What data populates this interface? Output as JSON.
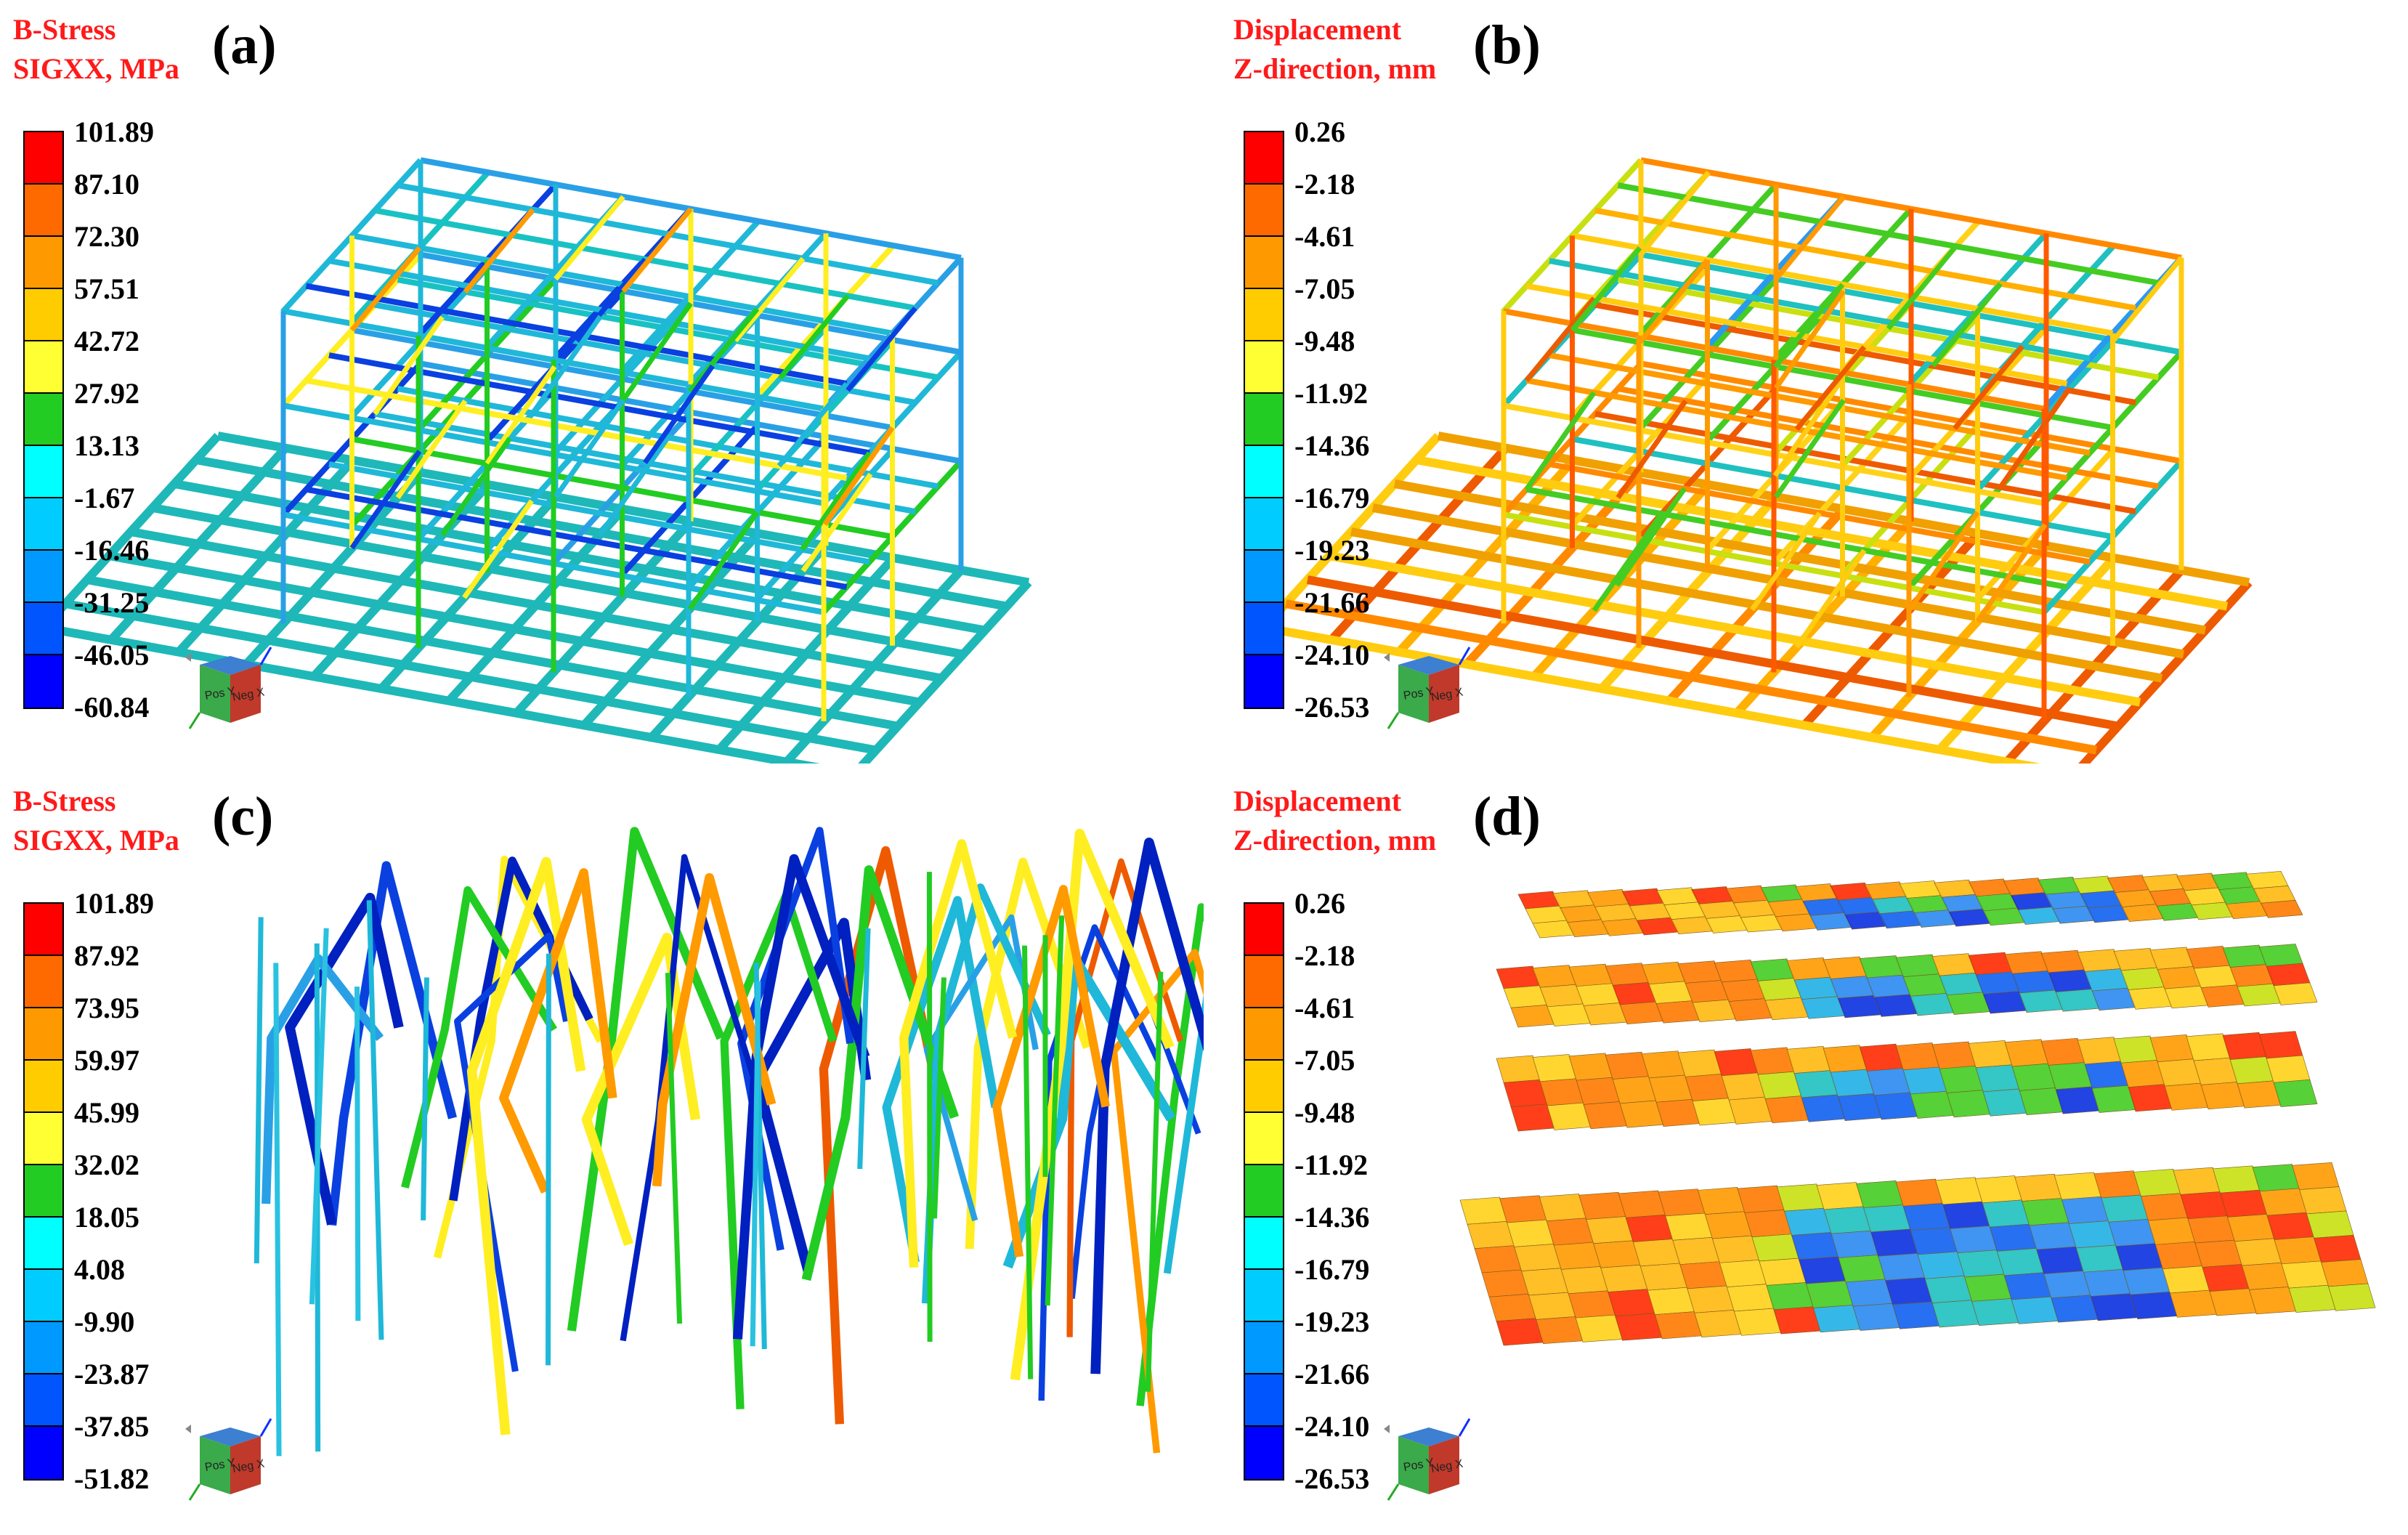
{
  "colors": {
    "scale": [
      "#ff0000",
      "#ff6a00",
      "#ff9900",
      "#ffcc00",
      "#ffff33",
      "#22cc22",
      "#00ffff",
      "#00ccff",
      "#0099ff",
      "#0055ff",
      "#0000ff"
    ],
    "title": "#ff1a1a",
    "structure_teal": "#1fb8b8"
  },
  "panels": [
    {
      "id": "a",
      "label": "(a)",
      "title_line1": "B-Stress",
      "title_line2": "SIGXX, MPa",
      "ticks": [
        "101.89",
        "87.10",
        "72.30",
        "57.51",
        "42.72",
        "27.92",
        "13.13",
        "-1.67",
        "-16.46",
        "-31.25",
        "-46.05",
        "-60.84"
      ],
      "view": "full-frame"
    },
    {
      "id": "b",
      "label": "(b)",
      "title_line1": "Displacement",
      "title_line2": "Z-direction, mm",
      "ticks": [
        "0.26",
        "-2.18",
        "-4.61",
        "-7.05",
        "-9.48",
        "-11.92",
        "-14.36",
        "-16.79",
        "-19.23",
        "-21.66",
        "-24.10",
        "-26.53"
      ],
      "view": "full-frame"
    },
    {
      "id": "c",
      "label": "(c)",
      "title_line1": "B-Stress",
      "title_line2": "SIGXX, MPa",
      "ticks": [
        "101.89",
        "87.92",
        "73.95",
        "59.97",
        "45.99",
        "32.02",
        "18.05",
        "4.08",
        "-9.90",
        "-23.87",
        "-37.85",
        "-51.82"
      ],
      "view": "braces"
    },
    {
      "id": "d",
      "label": "(d)",
      "title_line1": "Displacement",
      "title_line2": "Z-direction, mm",
      "ticks": [
        "0.26",
        "-2.18",
        "-4.61",
        "-7.05",
        "-9.48",
        "-11.92",
        "-14.36",
        "-16.79",
        "-19.23",
        "-21.66",
        "-24.10",
        "-26.53"
      ],
      "view": "exploded-decks"
    }
  ],
  "view_cube": {
    "face_front": "Neg X",
    "face_side": "Pos Y"
  }
}
